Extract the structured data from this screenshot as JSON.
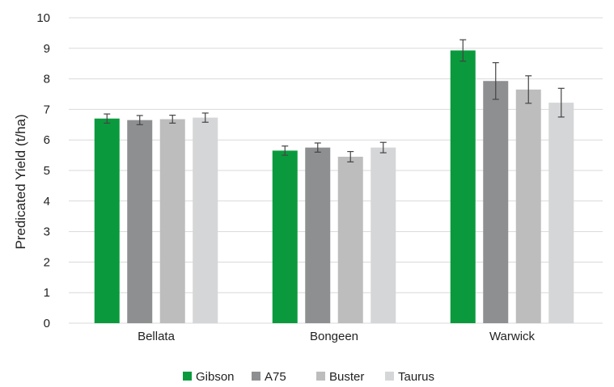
{
  "chart_data": {
    "type": "bar",
    "title": "",
    "xlabel": "",
    "ylabel": "Predicated Yield (t/ha)",
    "ylim": [
      0,
      10
    ],
    "yticks": [
      0,
      1,
      2,
      3,
      4,
      5,
      6,
      7,
      8,
      9,
      10
    ],
    "grid": true,
    "legend": "bottom",
    "categories": [
      "Bellata",
      "Bongeen",
      "Warwick"
    ],
    "series": [
      {
        "name": "Gibson",
        "color": "#0a9a3d",
        "values": [
          6.7,
          5.65,
          8.93
        ],
        "errors": [
          0.15,
          0.15,
          0.35
        ]
      },
      {
        "name": "A75",
        "color": "#8e8f91",
        "values": [
          6.65,
          5.75,
          7.93
        ],
        "errors": [
          0.15,
          0.15,
          0.6
        ]
      },
      {
        "name": "Buster",
        "color": "#bdbdbd",
        "values": [
          6.68,
          5.45,
          7.65
        ],
        "errors": [
          0.13,
          0.17,
          0.45
        ]
      },
      {
        "name": "Taurus",
        "color": "#d5d6d8",
        "values": [
          6.73,
          5.75,
          7.22
        ],
        "errors": [
          0.15,
          0.17,
          0.47
        ]
      }
    ]
  }
}
